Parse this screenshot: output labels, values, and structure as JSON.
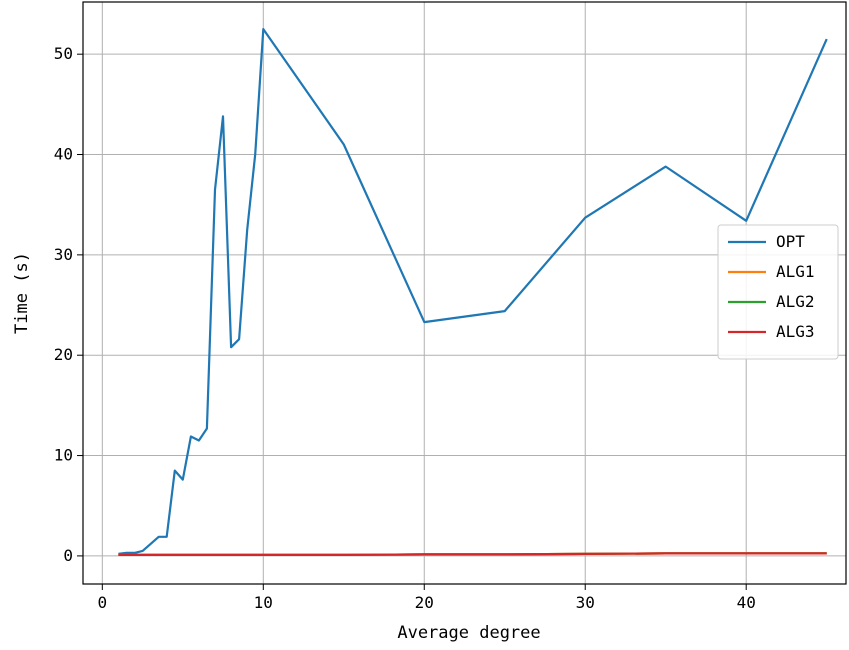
{
  "chart_data": {
    "type": "line",
    "title": "",
    "xlabel": "Average degree",
    "ylabel": "Time (s)",
    "xlim": [
      -1.2,
      46.2
    ],
    "ylim": [
      -2.8,
      55.2
    ],
    "xticks": [
      0,
      10,
      20,
      30,
      40
    ],
    "yticks": [
      0,
      10,
      20,
      30,
      40,
      50
    ],
    "grid": true,
    "legend_position": "center-right",
    "series": [
      {
        "name": "OPT",
        "color": "#1f77b4",
        "x": [
          1,
          1.5,
          2,
          2.5,
          3,
          3.5,
          4,
          4.5,
          5,
          5.5,
          6,
          6.5,
          7,
          7.5,
          8,
          8.5,
          9,
          9.5,
          10,
          15,
          20,
          25,
          30,
          35,
          40,
          45
        ],
        "y": [
          0.2,
          0.3,
          0.3,
          0.5,
          1.2,
          1.9,
          1.9,
          8.5,
          7.6,
          11.9,
          11.5,
          12.7,
          36.5,
          43.8,
          20.8,
          21.6,
          32.5,
          40.0,
          52.5,
          41.0,
          23.3,
          24.4,
          33.7,
          38.8,
          33.4,
          51.5
        ]
      },
      {
        "name": "ALG1",
        "color": "#ff7f0e",
        "x": [
          1,
          5,
          10,
          15,
          20,
          25,
          30,
          35,
          40,
          45
        ],
        "y": [
          0.1,
          0.1,
          0.1,
          0.1,
          0.15,
          0.15,
          0.2,
          0.25,
          0.25,
          0.25
        ]
      },
      {
        "name": "ALG2",
        "color": "#2ca02c",
        "x": [
          1,
          5,
          10,
          15,
          20,
          25,
          30,
          35,
          40,
          45
        ],
        "y": [
          0.1,
          0.1,
          0.1,
          0.1,
          0.15,
          0.15,
          0.2,
          0.25,
          0.25,
          0.25
        ]
      },
      {
        "name": "ALG3",
        "color": "#d62728",
        "x": [
          1,
          5,
          10,
          15,
          20,
          25,
          30,
          35,
          40,
          45
        ],
        "y": [
          0.1,
          0.1,
          0.1,
          0.1,
          0.15,
          0.15,
          0.2,
          0.25,
          0.25,
          0.25
        ]
      }
    ]
  }
}
